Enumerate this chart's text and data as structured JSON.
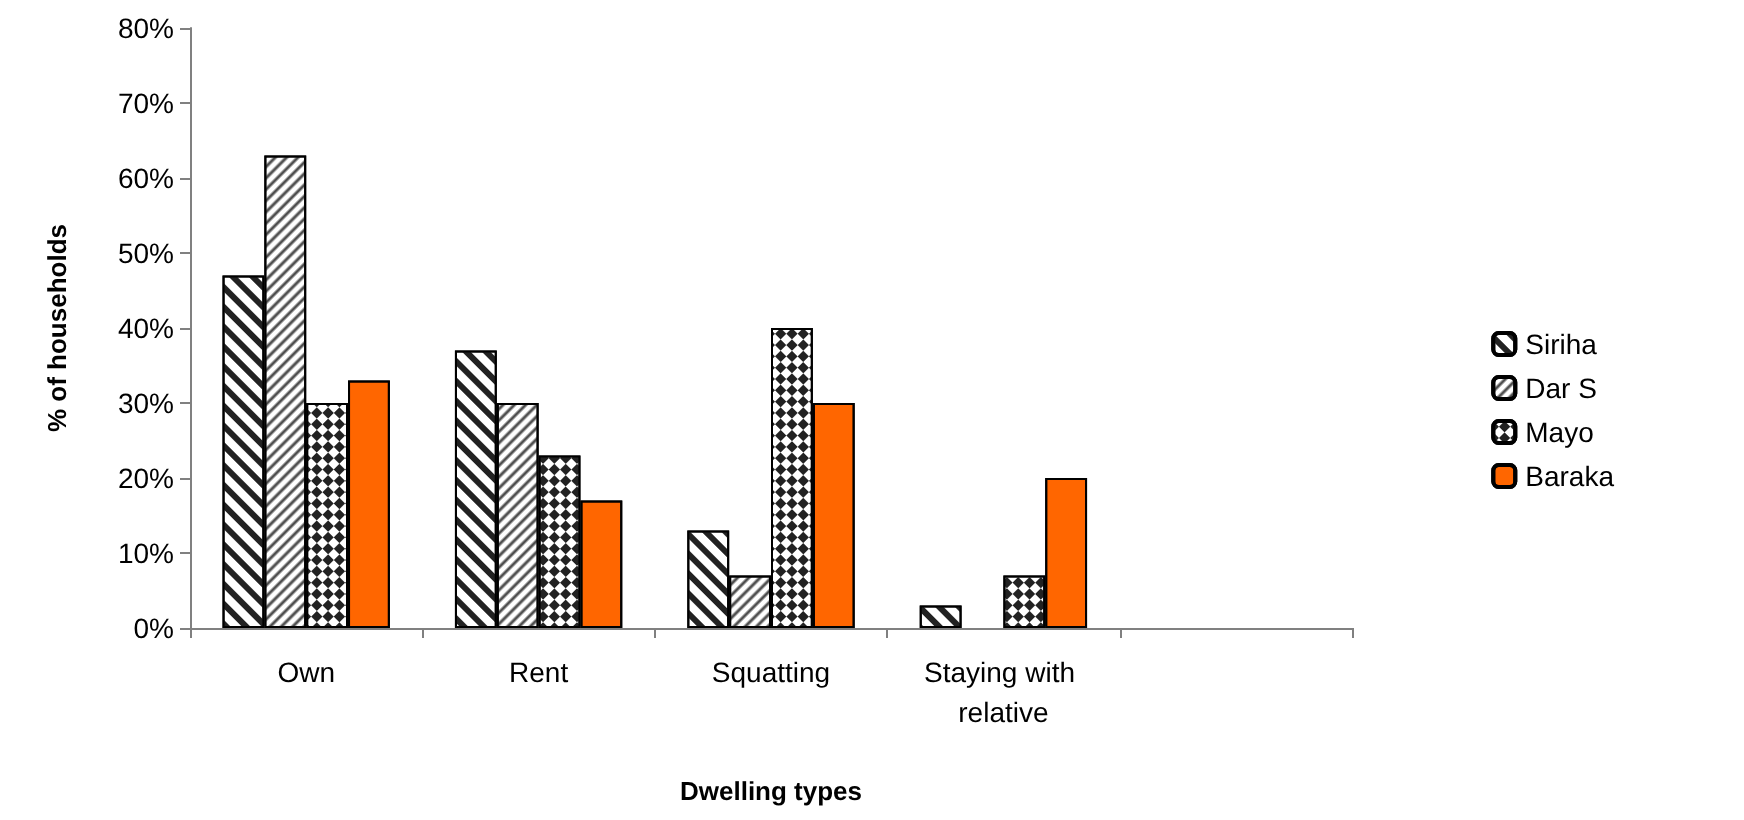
{
  "chart_data": {
    "type": "bar",
    "xlabel": "Dwelling types",
    "ylabel": "% of households",
    "categories": [
      "Own",
      "Rent",
      "Squatting",
      "Staying with relative",
      null
    ],
    "series": [
      {
        "name": "Siriha",
        "color": "#ffffff",
        "values": [
          47,
          37,
          13,
          3,
          null
        ]
      },
      {
        "name": "Dar S",
        "color": "#ffffff",
        "values": [
          63,
          30,
          7,
          null,
          null
        ]
      },
      {
        "name": "Mayo",
        "color": "#ffffff",
        "values": [
          30,
          23,
          40,
          7,
          null
        ]
      },
      {
        "name": "Baraka",
        "color": "#ff6600",
        "values": [
          33,
          17,
          30,
          20,
          null
        ]
      }
    ],
    "ylim": [
      0,
      80
    ],
    "yticks": [
      {
        "value": 0,
        "label": "0%"
      },
      {
        "value": 10,
        "label": "10%"
      },
      {
        "value": 20,
        "label": "20%"
      },
      {
        "value": 30,
        "label": "30%"
      },
      {
        "value": 40,
        "label": "40%"
      },
      {
        "value": 50,
        "label": "50%"
      },
      {
        "value": 60,
        "label": "60%"
      },
      {
        "value": 70,
        "label": "70%"
      },
      {
        "value": 80,
        "label": "80%"
      }
    ],
    "grid": false,
    "legend": "right"
  }
}
